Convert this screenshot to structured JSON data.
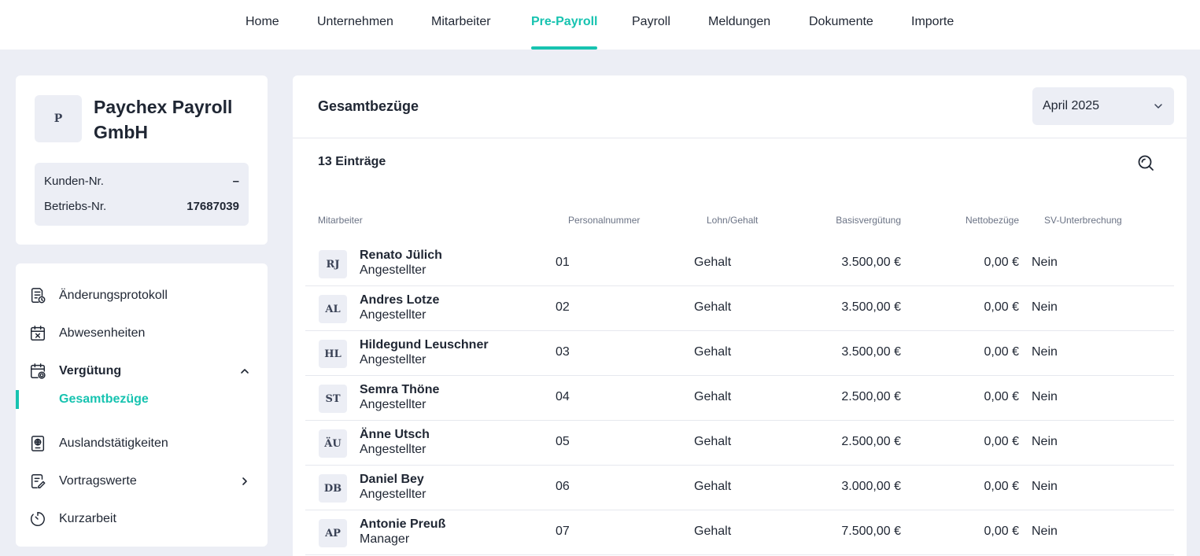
{
  "nav": {
    "items": [
      {
        "label": "Home"
      },
      {
        "label": "Unternehmen"
      },
      {
        "label": "Mitarbeiter"
      },
      {
        "label": "Pre-Payroll"
      },
      {
        "label": "Payroll"
      },
      {
        "label": "Meldungen"
      },
      {
        "label": "Dokumente"
      },
      {
        "label": "Importe"
      }
    ],
    "active": "Pre-Payroll"
  },
  "company": {
    "avatar_initial": "P",
    "name": "Paychex Payroll GmbH",
    "customer_label": "Kunden-Nr.",
    "customer_value": "–",
    "plant_label": "Betriebs-Nr.",
    "plant_value": "17687039"
  },
  "sidebar": {
    "items": [
      {
        "label": "Änderungsprotokoll",
        "icon": "document-clock-icon"
      },
      {
        "label": "Abwesenheiten",
        "icon": "calendar-x-icon"
      },
      {
        "label": "Vergütung",
        "icon": "calendar-settings-icon",
        "expanded": true
      },
      {
        "label": "Auslandstätigkeiten",
        "icon": "passport-icon"
      },
      {
        "label": "Vortragswerte",
        "icon": "document-edit-icon"
      },
      {
        "label": "Kurzarbeit",
        "icon": "timer-icon"
      }
    ],
    "subitem": {
      "label": "Gesamtbezüge"
    }
  },
  "main": {
    "title": "Gesamtbezüge",
    "month": "April 2025",
    "count": "13 Einträge",
    "columns": [
      "Mitarbeiter",
      "Personalnummer",
      "Lohn/Gehalt",
      "Basisvergütung",
      "Nettobezüge",
      "SV-Unterbrechung"
    ],
    "rows": [
      {
        "initials": "RJ",
        "name": "Renato Jülich",
        "role": "Angestellter",
        "number": "01",
        "type": "Gehalt",
        "base": "3.500,00 €",
        "net": "0,00 €",
        "sv": "Nein"
      },
      {
        "initials": "AL",
        "name": "Andres Lotze",
        "role": "Angestellter",
        "number": "02",
        "type": "Gehalt",
        "base": "3.500,00 €",
        "net": "0,00 €",
        "sv": "Nein"
      },
      {
        "initials": "HL",
        "name": "Hildegund Leuschner",
        "role": "Angestellter",
        "number": "03",
        "type": "Gehalt",
        "base": "3.500,00 €",
        "net": "0,00 €",
        "sv": "Nein"
      },
      {
        "initials": "ST",
        "name": "Semra Thöne",
        "role": "Angestellter",
        "number": "04",
        "type": "Gehalt",
        "base": "2.500,00 €",
        "net": "0,00 €",
        "sv": "Nein"
      },
      {
        "initials": "ÄU",
        "name": "Änne Utsch",
        "role": "Angestellter",
        "number": "05",
        "type": "Gehalt",
        "base": "2.500,00 €",
        "net": "0,00 €",
        "sv": "Nein"
      },
      {
        "initials": "DB",
        "name": "Daniel Bey",
        "role": "Angestellter",
        "number": "06",
        "type": "Gehalt",
        "base": "3.000,00 €",
        "net": "0,00 €",
        "sv": "Nein"
      },
      {
        "initials": "AP",
        "name": "Antonie Preuß",
        "role": "Manager",
        "number": "07",
        "type": "Gehalt",
        "base": "7.500,00 €",
        "net": "0,00 €",
        "sv": "Nein"
      }
    ]
  },
  "colors": {
    "accent": "#17c3b0",
    "background": "#eceef5",
    "text": "#1f2633"
  }
}
